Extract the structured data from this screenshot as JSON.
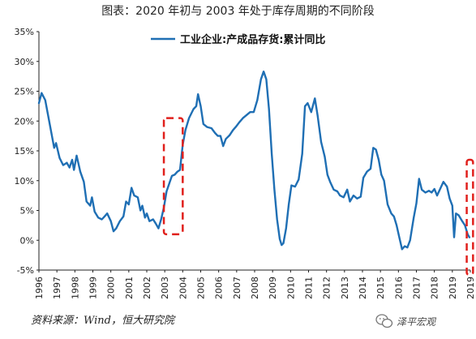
{
  "title": "图表：2020 年初与 2003 年处于库存周期的不同阶段",
  "source": "资料来源：Wind，恒大研究院",
  "watermark": "泽平宏观",
  "colors": {
    "line": "#1f6fb4",
    "highlight": "#e0201c",
    "axis": "#222222"
  },
  "chart_data": {
    "type": "line",
    "title": "",
    "xlabel": "",
    "ylabel": "",
    "legend_position": "top-center",
    "grid": false,
    "x_range": [
      1996.0,
      2020.0
    ],
    "ylim": [
      -5,
      35
    ],
    "y_ticks": [
      -5,
      0,
      5,
      10,
      15,
      20,
      25,
      30,
      35
    ],
    "y_tick_labels": [
      "-5%",
      "0%",
      "5%",
      "10%",
      "15%",
      "20%",
      "25%",
      "30%",
      "35%"
    ],
    "x_tick_labels": [
      "1996",
      "1997",
      "1998",
      "1999",
      "2000",
      "2001",
      "2002",
      "2003",
      "2004",
      "2005",
      "2006",
      "2007",
      "2008",
      "2009",
      "2010",
      "2011",
      "2012",
      "2013",
      "2014",
      "2015",
      "2016",
      "2017",
      "2018",
      "2019",
      "2019"
    ],
    "highlights": [
      {
        "x_start": 2002.95,
        "x_end": 2004.0,
        "y_low": 1,
        "y_high": 20.5
      },
      {
        "x_start": 2019.8,
        "x_end": 2020.15,
        "y_low": -5.8,
        "y_high": 13.5
      }
    ],
    "series": [
      {
        "name": "工业企业:产成品存货:累计同比",
        "points": [
          [
            1996.0,
            23.0
          ],
          [
            1996.15,
            24.7
          ],
          [
            1996.35,
            23.5
          ],
          [
            1996.6,
            19.5
          ],
          [
            1996.85,
            15.5
          ],
          [
            1996.95,
            16.3
          ],
          [
            1997.15,
            13.8
          ],
          [
            1997.35,
            12.6
          ],
          [
            1997.55,
            13.0
          ],
          [
            1997.7,
            12.2
          ],
          [
            1997.85,
            13.5
          ],
          [
            1997.95,
            11.8
          ],
          [
            1998.1,
            14.2
          ],
          [
            1998.3,
            11.5
          ],
          [
            1998.5,
            9.8
          ],
          [
            1998.65,
            6.5
          ],
          [
            1998.85,
            5.8
          ],
          [
            1998.95,
            7.2
          ],
          [
            1999.1,
            4.8
          ],
          [
            1999.3,
            3.8
          ],
          [
            1999.5,
            3.5
          ],
          [
            1999.65,
            4.0
          ],
          [
            1999.8,
            4.5
          ],
          [
            2000.0,
            3.2
          ],
          [
            2000.15,
            1.5
          ],
          [
            2000.3,
            2.0
          ],
          [
            2000.5,
            3.2
          ],
          [
            2000.7,
            4.0
          ],
          [
            2000.85,
            6.5
          ],
          [
            2001.0,
            6.0
          ],
          [
            2001.15,
            8.8
          ],
          [
            2001.3,
            7.5
          ],
          [
            2001.5,
            7.2
          ],
          [
            2001.65,
            5.0
          ],
          [
            2001.75,
            5.8
          ],
          [
            2001.9,
            3.8
          ],
          [
            2002.0,
            4.5
          ],
          [
            2002.15,
            3.2
          ],
          [
            2002.35,
            3.5
          ],
          [
            2002.5,
            2.8
          ],
          [
            2002.65,
            2.0
          ],
          [
            2002.8,
            3.5
          ],
          [
            2002.95,
            5.5
          ],
          [
            2003.1,
            8.2
          ],
          [
            2003.25,
            9.5
          ],
          [
            2003.4,
            10.8
          ],
          [
            2003.55,
            11.0
          ],
          [
            2003.7,
            11.5
          ],
          [
            2003.85,
            11.8
          ],
          [
            2004.0,
            16.0
          ],
          [
            2004.15,
            18.5
          ],
          [
            2004.35,
            20.5
          ],
          [
            2004.6,
            22.0
          ],
          [
            2004.75,
            22.5
          ],
          [
            2004.85,
            24.5
          ],
          [
            2005.0,
            22.5
          ],
          [
            2005.15,
            19.5
          ],
          [
            2005.35,
            19.0
          ],
          [
            2005.6,
            18.8
          ],
          [
            2005.8,
            18.0
          ],
          [
            2005.95,
            17.5
          ],
          [
            2006.1,
            17.5
          ],
          [
            2006.25,
            15.8
          ],
          [
            2006.4,
            17.0
          ],
          [
            2006.6,
            17.6
          ],
          [
            2006.8,
            18.5
          ],
          [
            2006.95,
            19.0
          ],
          [
            2007.15,
            19.8
          ],
          [
            2007.35,
            20.5
          ],
          [
            2007.55,
            21.0
          ],
          [
            2007.75,
            21.5
          ],
          [
            2007.95,
            21.5
          ],
          [
            2008.15,
            23.5
          ],
          [
            2008.35,
            27.0
          ],
          [
            2008.5,
            28.3
          ],
          [
            2008.65,
            27.0
          ],
          [
            2008.8,
            22.0
          ],
          [
            2008.95,
            14.5
          ],
          [
            2009.1,
            8.5
          ],
          [
            2009.25,
            3.5
          ],
          [
            2009.4,
            0.2
          ],
          [
            2009.5,
            -0.8
          ],
          [
            2009.6,
            -0.5
          ],
          [
            2009.75,
            2.0
          ],
          [
            2009.9,
            6.0
          ],
          [
            2010.05,
            9.2
          ],
          [
            2010.25,
            9.0
          ],
          [
            2010.45,
            10.2
          ],
          [
            2010.65,
            14.5
          ],
          [
            2010.8,
            22.5
          ],
          [
            2010.95,
            23.0
          ],
          [
            2011.15,
            21.5
          ],
          [
            2011.35,
            23.8
          ],
          [
            2011.5,
            21.0
          ],
          [
            2011.7,
            16.5
          ],
          [
            2011.9,
            14.0
          ],
          [
            2012.05,
            11.0
          ],
          [
            2012.2,
            9.8
          ],
          [
            2012.4,
            8.5
          ],
          [
            2012.6,
            8.2
          ],
          [
            2012.75,
            7.5
          ],
          [
            2012.95,
            7.2
          ],
          [
            2013.15,
            8.5
          ],
          [
            2013.3,
            6.5
          ],
          [
            2013.5,
            7.5
          ],
          [
            2013.7,
            7.0
          ],
          [
            2013.9,
            7.3
          ],
          [
            2014.05,
            10.5
          ],
          [
            2014.25,
            11.5
          ],
          [
            2014.45,
            12.0
          ],
          [
            2014.6,
            15.5
          ],
          [
            2014.75,
            15.2
          ],
          [
            2014.9,
            13.5
          ],
          [
            2015.05,
            11.0
          ],
          [
            2015.2,
            10.0
          ],
          [
            2015.4,
            6.0
          ],
          [
            2015.6,
            4.5
          ],
          [
            2015.75,
            4.0
          ],
          [
            2015.9,
            2.5
          ],
          [
            2016.05,
            0.5
          ],
          [
            2016.2,
            -1.5
          ],
          [
            2016.35,
            -1.0
          ],
          [
            2016.5,
            -1.2
          ],
          [
            2016.65,
            0.0
          ],
          [
            2016.85,
            3.8
          ],
          [
            2017.0,
            6.2
          ],
          [
            2017.15,
            10.3
          ],
          [
            2017.3,
            8.5
          ],
          [
            2017.5,
            8.0
          ],
          [
            2017.7,
            8.3
          ],
          [
            2017.85,
            8.0
          ],
          [
            2018.0,
            8.6
          ],
          [
            2018.15,
            7.5
          ],
          [
            2018.35,
            8.8
          ],
          [
            2018.5,
            9.8
          ],
          [
            2018.7,
            9.0
          ],
          [
            2018.85,
            7.0
          ],
          [
            2019.0,
            5.8
          ],
          [
            2019.1,
            0.5
          ],
          [
            2019.2,
            4.5
          ],
          [
            2019.35,
            4.2
          ],
          [
            2019.55,
            3.2
          ],
          [
            2019.7,
            2.5
          ],
          [
            2019.85,
            1.0
          ],
          [
            2019.95,
            0.5
          ]
        ]
      }
    ]
  }
}
